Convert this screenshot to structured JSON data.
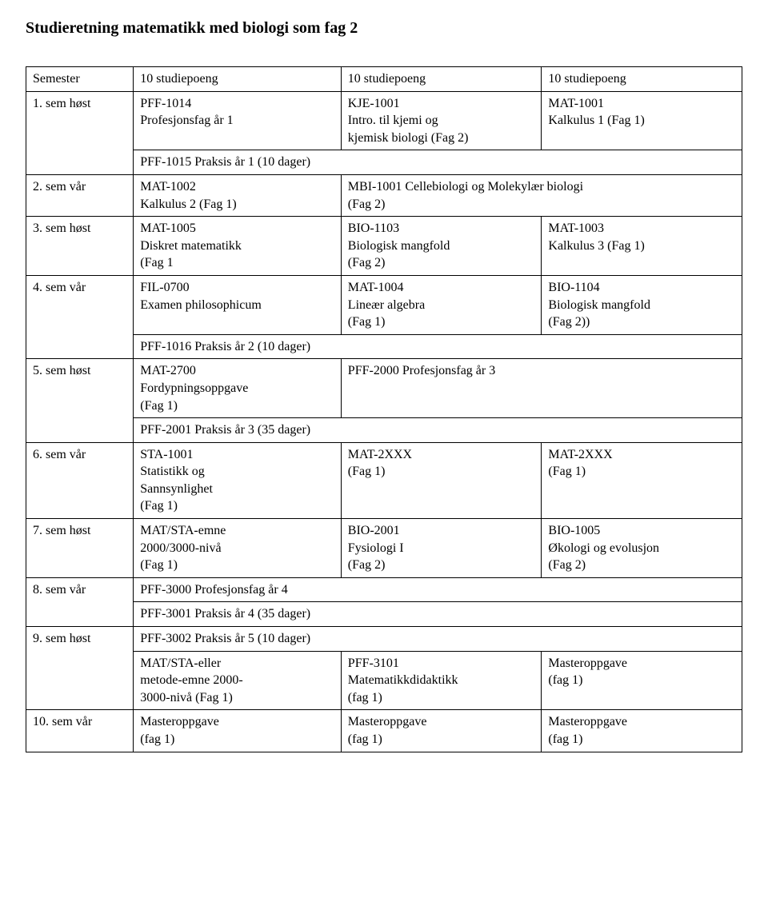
{
  "title": "Studieretning matematikk med biologi som fag 2",
  "header": {
    "c0": "Semester",
    "c1": "10 studiepoeng",
    "c2": "10 studiepoeng",
    "c3": "10 studiepoeng"
  },
  "r1": {
    "c0": "1. sem høst",
    "c1": "PFF-1014\nProfesjonsfag år 1",
    "c2": "KJE-1001\nIntro. til kjemi og\nkjemisk biologi (Fag 2)",
    "c3": "MAT-1001\nKalkulus 1 (Fag 1)"
  },
  "r1b": {
    "span": "PFF-1015 Praksis år 1 (10 dager)"
  },
  "r2": {
    "c0": "2. sem vår",
    "c1": "MAT-1002\nKalkulus 2 (Fag 1)",
    "c23": "MBI-1001 Cellebiologi og Molekylær biologi\n(Fag 2)"
  },
  "r3": {
    "c0": "3. sem høst",
    "c1": "MAT-1005\nDiskret matematikk\n(Fag 1",
    "c2": "BIO-1103\nBiologisk mangfold\n(Fag 2)",
    "c3": "MAT-1003\nKalkulus 3 (Fag 1)"
  },
  "r4": {
    "c0": "4. sem vår",
    "c1": "FIL-0700\nExamen philosophicum",
    "c2": "MAT-1004\nLineær algebra\n(Fag 1)",
    "c3": "BIO-1104\nBiologisk mangfold\n(Fag 2))"
  },
  "r4b": {
    "span": "PFF-1016 Praksis år 2 (10 dager)"
  },
  "r5": {
    "c0": "5. sem høst",
    "c1": "MAT-2700\nFordypningsoppgave\n(Fag 1)",
    "c23": "PFF-2000 Profesjonsfag år 3"
  },
  "r5b": {
    "span": "PFF-2001 Praksis år 3 (35 dager)"
  },
  "r6": {
    "c0": "6. sem vår",
    "c1": "STA-1001\nStatistikk og\nSannsynlighet\n(Fag 1)",
    "c2": "MAT-2XXX\n(Fag 1)",
    "c3": "MAT-2XXX\n(Fag 1)"
  },
  "r7": {
    "c0": "7. sem høst",
    "c1": "MAT/STA-emne\n2000/3000-nivå\n(Fag 1)",
    "c2": "BIO-2001\nFysiologi I\n(Fag 2)",
    "c3": "BIO-1005\nØkologi og evolusjon\n(Fag 2)"
  },
  "r8": {
    "c0": "8. sem vår",
    "span": "PFF-3000 Profesjonsfag år 4"
  },
  "r8b": {
    "span": "PFF-3001 Praksis år 4 (35 dager)"
  },
  "r9": {
    "c0": "9. sem høst",
    "span": "PFF-3002 Praksis år 5 (10 dager)"
  },
  "r9b": {
    "c1": "MAT/STA-eller\nmetode-emne 2000-\n3000-nivå (Fag 1)",
    "c2": "PFF-3101\nMatematikkdidaktikk\n(fag 1)",
    "c3": "Masteroppgave\n(fag 1)"
  },
  "r10": {
    "c0": "10. sem vår",
    "c1": "Masteroppgave\n(fag 1)",
    "c2": "Masteroppgave\n(fag 1)",
    "c3": "Masteroppgave\n(fag 1)"
  }
}
